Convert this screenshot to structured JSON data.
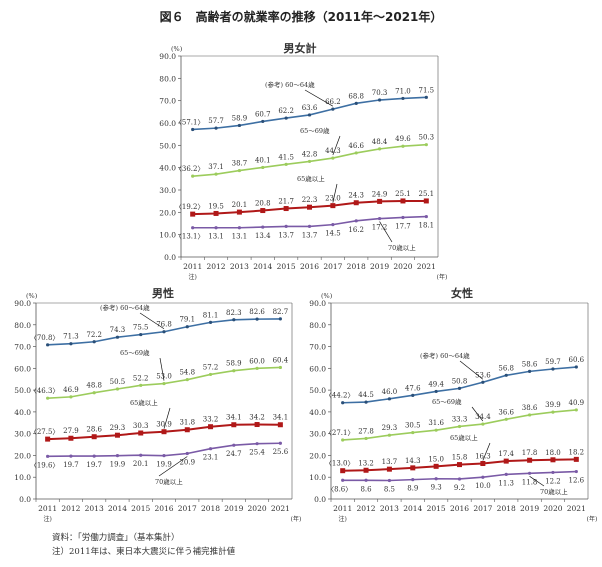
{
  "title": "図６　高齢者の就業率の推移（2011年～2021年）",
  "footnotes": [
    "資料：「労働力調査」（基本集計）",
    "注）2011年は、東日本大震災に伴う補完推計値"
  ],
  "colors": {
    "60-64": "#3d6fa3",
    "65-69": "#9ccc5c",
    "65plus": "#b01818",
    "70plus": "#7a5aa6",
    "axis": "#555555"
  },
  "chart_data": [
    {
      "type": "line",
      "title": "男女計",
      "ylabel": "(%)",
      "xlabel": "(年)",
      "x_note": "注)",
      "ylim": [
        0,
        90
      ],
      "yticks": [
        "0.0",
        "10.0",
        "20.0",
        "30.0",
        "40.0",
        "50.0",
        "60.0",
        "70.0",
        "80.0",
        "90.0"
      ],
      "categories": [
        "2011",
        "2012",
        "2013",
        "2014",
        "2015",
        "2016",
        "2017",
        "2018",
        "2019",
        "2020",
        "2021"
      ],
      "series": [
        {
          "name": "(参考) 60～64歳",
          "values": [
            57.1,
            57.7,
            58.9,
            60.7,
            62.2,
            63.6,
            66.2,
            68.8,
            70.3,
            71.0,
            71.5
          ]
        },
        {
          "name": "65～69歳",
          "values": [
            36.2,
            37.1,
            38.7,
            40.1,
            41.5,
            42.8,
            44.3,
            46.6,
            48.4,
            49.6,
            50.3
          ]
        },
        {
          "name": "65歳以上",
          "values": [
            19.2,
            19.5,
            20.1,
            20.8,
            21.7,
            22.3,
            23.0,
            24.3,
            24.9,
            25.1,
            25.1
          ]
        },
        {
          "name": "70歳以上",
          "values": [
            13.1,
            13.1,
            13.1,
            13.4,
            13.7,
            13.7,
            14.5,
            16.2,
            17.2,
            17.7,
            18.1
          ]
        }
      ]
    },
    {
      "type": "line",
      "title": "男性",
      "ylabel": "(%)",
      "xlabel": "(年)",
      "x_note": "注)",
      "ylim": [
        0,
        90
      ],
      "yticks": [
        "0.0",
        "10.0",
        "20.0",
        "30.0",
        "40.0",
        "50.0",
        "60.0",
        "70.0",
        "80.0",
        "90.0"
      ],
      "categories": [
        "2011",
        "2012",
        "2013",
        "2014",
        "2015",
        "2016",
        "2017",
        "2018",
        "2019",
        "2020",
        "2021"
      ],
      "series": [
        {
          "name": "(参考) 60～64歳",
          "values": [
            70.8,
            71.3,
            72.2,
            74.3,
            75.5,
            76.8,
            79.1,
            81.1,
            82.3,
            82.6,
            82.7
          ]
        },
        {
          "name": "65～69歳",
          "values": [
            46.3,
            46.9,
            48.8,
            50.5,
            52.2,
            53.0,
            54.8,
            57.2,
            58.9,
            60.0,
            60.4
          ]
        },
        {
          "name": "65歳以上",
          "values": [
            27.5,
            27.9,
            28.6,
            29.3,
            30.3,
            30.9,
            31.8,
            33.2,
            34.1,
            34.2,
            34.1
          ]
        },
        {
          "name": "70歳以上",
          "values": [
            19.6,
            19.7,
            19.7,
            19.9,
            20.1,
            19.9,
            20.9,
            23.1,
            24.7,
            25.4,
            25.6
          ]
        }
      ]
    },
    {
      "type": "line",
      "title": "女性",
      "ylabel": "(%)",
      "xlabel": "(年)",
      "x_note": "注)",
      "ylim": [
        0,
        90
      ],
      "yticks": [
        "0.0",
        "10.0",
        "20.0",
        "30.0",
        "40.0",
        "50.0",
        "60.0",
        "70.0",
        "80.0",
        "90.0"
      ],
      "categories": [
        "2011",
        "2012",
        "2013",
        "2014",
        "2015",
        "2016",
        "2017",
        "2018",
        "2019",
        "2020",
        "2021"
      ],
      "series": [
        {
          "name": "(参考) 60～64歳",
          "values": [
            44.2,
            44.5,
            46.0,
            47.6,
            49.4,
            50.8,
            53.6,
            56.8,
            58.6,
            59.7,
            60.6
          ]
        },
        {
          "name": "65～69歳",
          "values": [
            27.1,
            27.8,
            29.3,
            30.5,
            31.6,
            33.3,
            34.4,
            36.6,
            38.6,
            39.9,
            40.9
          ]
        },
        {
          "name": "65歳以上",
          "values": [
            13.0,
            13.2,
            13.7,
            14.3,
            15.0,
            15.8,
            16.3,
            17.4,
            17.8,
            18.0,
            18.2
          ]
        },
        {
          "name": "70歳以上",
          "values": [
            8.6,
            8.6,
            8.5,
            8.9,
            9.3,
            9.2,
            10.0,
            11.3,
            11.8,
            12.2,
            12.6
          ]
        }
      ]
    }
  ]
}
